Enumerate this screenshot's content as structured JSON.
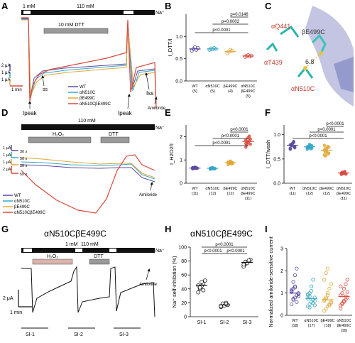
{
  "panels": {
    "A": {
      "letter": "A",
      "bar_left": "1 mM",
      "bar_mid": "110 mM",
      "na": "Na⁺",
      "dtt": "10 mM DTT",
      "scale_y1": "2 μA",
      "scale_y2": "1 μA",
      "scale_y3": "1 μA",
      "scale_x": "1 min",
      "ss": "ss",
      "ipeak_left": "Ipeak",
      "ipeak_right": "Ipeak",
      "iss": "Iss",
      "amiloride": "Amiloride",
      "legend": [
        {
          "label": "WT",
          "color": "#5b4aa3"
        },
        {
          "label": "αN510C",
          "color": "#35a7c6"
        },
        {
          "label": "βE499C",
          "color": "#e0a83a"
        },
        {
          "label": "αN510CβE499C",
          "color": "#d94a3d"
        }
      ]
    },
    "B": {
      "letter": "B",
      "ylabel": "I_DTT/I",
      "yticks": [
        "0.0",
        "0.5",
        "1.0"
      ],
      "sig": [
        "p=0.0146",
        "p=0.0002",
        "p<0.0001"
      ],
      "groups": [
        {
          "name": "WT",
          "n": "(5)",
          "color": "#5b4aa3"
        },
        {
          "name": "αN510C",
          "n": "(5)",
          "color": "#35a7c6"
        },
        {
          "name": "βE499C",
          "n": "(4)",
          "color": "#e0a83a"
        },
        {
          "name": "αN510C βE499C",
          "n": "(5)",
          "color": "#d94a3d"
        }
      ]
    },
    "C": {
      "letter": "C",
      "labels": [
        "αQ441",
        "βE499C",
        "αT439",
        "6.8",
        "αN510C"
      ]
    },
    "D": {
      "letter": "D",
      "bar": "110 mM",
      "na": "Na⁺",
      "h2o2": "H₂O₂",
      "dtt": "DTT",
      "scale_y": [
        "1 μA",
        "1 μA",
        "1 μA",
        "2 μA"
      ],
      "scale_x": [
        "30 s",
        "50 s",
        "50 s",
        "50 s"
      ],
      "amiloride": "Amiloride",
      "legend": [
        {
          "label": "WT",
          "color": "#5b4aa3"
        },
        {
          "label": "αN510C",
          "color": "#35a7c6"
        },
        {
          "label": "βE499C",
          "color": "#e0a83a"
        },
        {
          "label": "αN510CβE499C",
          "color": "#d94a3d"
        }
      ]
    },
    "E": {
      "letter": "E",
      "ylabel": "I_H2O2/I",
      "yticks": [
        "0",
        "1",
        "2"
      ],
      "sig": [
        "p<0.0001",
        "p<0.0001",
        "p<0.0001"
      ],
      "groups": [
        {
          "name": "WT",
          "n": "(11)",
          "color": "#5b4aa3"
        },
        {
          "name": "αN510C",
          "n": "(12)",
          "color": "#35a7c6"
        },
        {
          "name": "βE499C",
          "n": "(12)",
          "color": "#e0a83a"
        },
        {
          "name": "αN510C βE499C",
          "n": "(11)",
          "color": "#d94a3d"
        }
      ]
    },
    "F": {
      "letter": "F",
      "ylabel": "I_DTT/wash",
      "yticks": [
        "0.0",
        "0.5",
        "1.0"
      ],
      "sig": [
        "p<0.0001",
        "p<0.0001",
        "p<0.0001"
      ],
      "groups": [
        {
          "name": "WT",
          "n": "(11)",
          "color": "#5b4aa3"
        },
        {
          "name": "αN510C",
          "n": "(12)",
          "color": "#35a7c6"
        },
        {
          "name": "βE499C",
          "n": "(12)",
          "color": "#e0a83a"
        },
        {
          "name": "αN510C βE499C",
          "n": "(11)",
          "color": "#d94a3d"
        }
      ]
    },
    "G": {
      "letter": "G",
      "title": "αN510CβE499C",
      "bar_left": "1 mM",
      "bar_mid": "110 mM",
      "na": "Na⁺",
      "h2o2": "H₂O₂",
      "dtt": "DTT",
      "amiloride": "Amiloride",
      "scale_y": "2 μA",
      "scale_x": "1 min",
      "si": [
        "SI-1",
        "SI-2",
        "SI-3"
      ]
    },
    "H": {
      "letter": "H",
      "title": "αN510CβE499C",
      "ylabel": "Na⁺ self-inhibition (%)",
      "yticks": [
        "0",
        "20",
        "40",
        "60",
        "80",
        "100"
      ],
      "sig": [
        "p<0.0001",
        "p<0.0001",
        "p<0.0001"
      ],
      "groups": [
        "SI-1",
        "SI-2",
        "SI-3"
      ]
    },
    "I": {
      "letter": "I",
      "ylabel": "Normalized amiloride-sensitive current",
      "yticks": [
        "0",
        "1",
        "2",
        "3"
      ],
      "groups": [
        {
          "name": "WT",
          "n": "(18)",
          "color": "#5b4aa3"
        },
        {
          "name": "αN510C",
          "n": "(17)",
          "color": "#35a7c6"
        },
        {
          "name": "βE499C",
          "n": "(18)",
          "color": "#e0a83a"
        },
        {
          "name": "αN510C βE499C",
          "n": "(16)",
          "color": "#d94a3d"
        }
      ]
    }
  },
  "chart_data": [
    {
      "type": "scatter",
      "panel": "B",
      "ylabel": "I_DTT/I",
      "ylim": [
        0,
        1.5
      ],
      "categories": [
        "WT",
        "αN510C",
        "βE499C",
        "αN510C βE499C"
      ],
      "values": [
        [
          0.68,
          0.72,
          0.76,
          0.7,
          0.74
        ],
        [
          0.7,
          0.73,
          0.71,
          0.74,
          0.72
        ],
        [
          0.62,
          0.66,
          0.7,
          0.68
        ],
        [
          0.54,
          0.56,
          0.58,
          0.55,
          0.57
        ]
      ],
      "means": [
        0.72,
        0.72,
        0.66,
        0.56
      ]
    },
    {
      "type": "scatter",
      "panel": "E",
      "ylabel": "I_H2O2/I",
      "ylim": [
        0,
        2.5
      ],
      "categories": [
        "WT",
        "αN510C",
        "βE499C",
        "αN510C βE499C"
      ],
      "values": [
        [
          0.62,
          0.66,
          0.68,
          0.64,
          0.65,
          0.67,
          0.63,
          0.69,
          0.66,
          0.64,
          0.65
        ],
        [
          0.6,
          0.64,
          0.66,
          0.62,
          0.63,
          0.65,
          0.61,
          0.67,
          0.64,
          0.62,
          0.63,
          0.66
        ],
        [
          0.8,
          0.86,
          0.92,
          0.88,
          0.84,
          0.9,
          0.87,
          0.95,
          0.83,
          0.89,
          0.91,
          0.85
        ],
        [
          1.55,
          1.65,
          1.75,
          1.82,
          1.9,
          1.7,
          1.78,
          1.95,
          2.02,
          1.68,
          1.85
        ]
      ],
      "means": [
        0.65,
        0.64,
        0.88,
        1.79
      ]
    },
    {
      "type": "scatter",
      "panel": "F",
      "ylabel": "I_DTT/wash",
      "ylim": [
        0,
        1.2
      ],
      "categories": [
        "WT",
        "αN510C",
        "βE499C",
        "αN510C βE499C"
      ],
      "values": [
        [
          0.72,
          0.78,
          0.82,
          0.86,
          0.75,
          0.7,
          0.8,
          0.77,
          0.84,
          0.73,
          0.79
        ],
        [
          0.7,
          0.74,
          0.76,
          0.78,
          0.72,
          0.75,
          0.73,
          0.8,
          0.71,
          0.77,
          0.74,
          0.76
        ],
        [
          0.58,
          0.64,
          0.7,
          0.76,
          0.62,
          0.68,
          0.72,
          0.66,
          0.6,
          0.74,
          0.78,
          0.56
        ],
        [
          0.18,
          0.2,
          0.22,
          0.24,
          0.19,
          0.21,
          0.23,
          0.2,
          0.22,
          0.19,
          0.21
        ]
      ],
      "means": [
        0.78,
        0.75,
        0.68,
        0.21
      ]
    },
    {
      "type": "scatter",
      "panel": "H",
      "ylabel": "Na⁺ self-inhibition (%)",
      "ylim": [
        0,
        100
      ],
      "categories": [
        "SI-1",
        "SI-2",
        "SI-3"
      ],
      "values": [
        [
          35,
          40,
          44,
          48,
          52,
          45,
          42,
          50,
          38
        ],
        [
          14,
          16,
          18,
          20,
          17,
          15,
          19,
          16,
          18
        ],
        [
          72,
          76,
          78,
          80,
          82,
          75,
          79,
          77,
          81
        ]
      ],
      "means": [
        45,
        17,
        78
      ]
    },
    {
      "type": "scatter",
      "panel": "I",
      "ylabel": "Normalized amiloride-sensitive current",
      "ylim": [
        0,
        3
      ],
      "categories": [
        "WT",
        "αN510C",
        "βE499C",
        "αN510C βE499C"
      ],
      "values": [
        [
          0.5,
          0.7,
          0.8,
          0.9,
          1.0,
          1.1,
          1.2,
          1.3,
          0.6,
          0.95,
          1.05,
          1.5,
          1.8,
          2.1,
          0.85,
          1.15,
          0.75,
          1.25
        ],
        [
          0.4,
          0.5,
          0.6,
          0.7,
          0.8,
          0.9,
          1.0,
          1.1,
          0.55,
          0.65,
          0.75,
          0.85,
          1.3,
          1.6,
          0.45,
          0.95,
          0.35
        ],
        [
          0.2,
          0.3,
          0.4,
          0.5,
          0.6,
          0.7,
          0.8,
          1.0,
          1.2,
          1.4,
          1.6,
          1.9,
          2.1,
          0.45,
          0.55,
          0.65,
          0.75,
          0.9
        ],
        [
          0.3,
          0.5,
          0.6,
          0.7,
          0.8,
          0.9,
          1.0,
          1.2,
          1.4,
          1.6,
          0.45,
          0.55,
          0.65,
          0.85,
          1.05,
          1.3
        ]
      ],
      "means": [
        1.0,
        0.75,
        0.7,
        0.85
      ]
    }
  ]
}
